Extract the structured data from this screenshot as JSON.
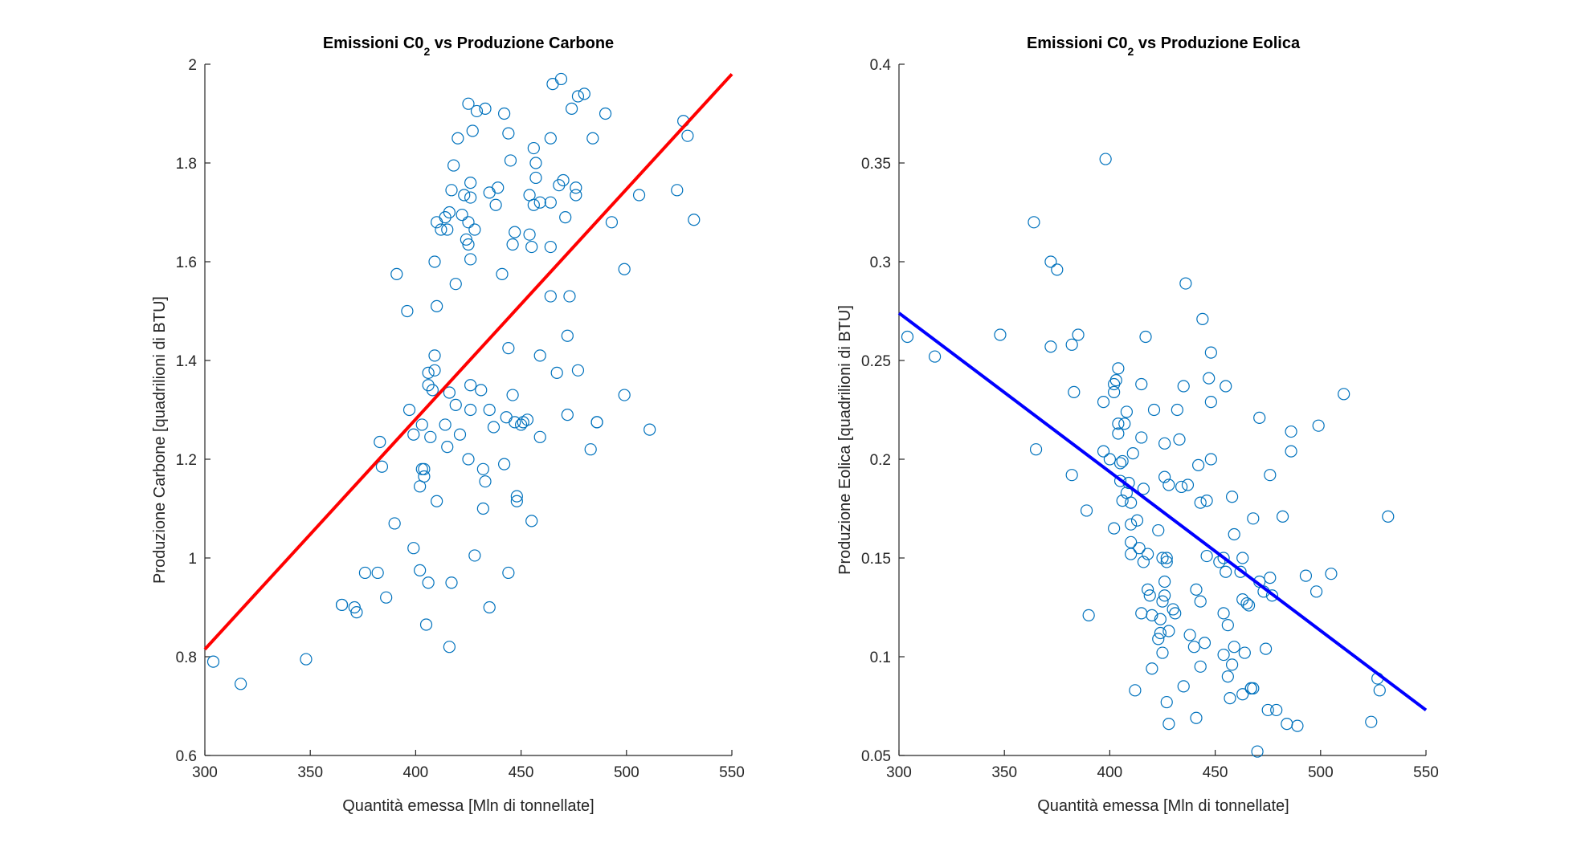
{
  "chart_data": [
    {
      "type": "scatter",
      "title": "Emissioni C0",
      "title_subscript": "2",
      "title_tail": " vs Produzione Carbone",
      "xlabel": "Quantità emessa [Mln di tonnellate]",
      "ylabel": "Produzione Carbone [quadrilioni di BTU]",
      "xlim": [
        300,
        550
      ],
      "ylim": [
        0.6,
        2.0
      ],
      "xticks": [
        "300",
        "350",
        "400",
        "450",
        "500",
        "550"
      ],
      "yticks": [
        "0.6",
        "0.8",
        "1",
        "1.2",
        "1.4",
        "1.6",
        "1.8",
        "2"
      ],
      "grid": false,
      "marker_color": "#0072bd",
      "fit_line": {
        "color": "#ff0000",
        "x": [
          300,
          550
        ],
        "y": [
          0.815,
          1.98
        ]
      },
      "points": [
        [
          304,
          0.79
        ],
        [
          317,
          0.745
        ],
        [
          348,
          0.795
        ],
        [
          365,
          0.905
        ],
        [
          365,
          0.905
        ],
        [
          371,
          0.9
        ],
        [
          372,
          0.89
        ],
        [
          376,
          0.97
        ],
        [
          382,
          0.97
        ],
        [
          383,
          1.235
        ],
        [
          384,
          1.185
        ],
        [
          386,
          0.92
        ],
        [
          390,
          1.07
        ],
        [
          391,
          1.575
        ],
        [
          396,
          1.5
        ],
        [
          397,
          1.3
        ],
        [
          399,
          1.02
        ],
        [
          399,
          1.25
        ],
        [
          402,
          1.145
        ],
        [
          402,
          0.975
        ],
        [
          403,
          1.27
        ],
        [
          403,
          1.18
        ],
        [
          404,
          1.18
        ],
        [
          404,
          1.165
        ],
        [
          405,
          0.865
        ],
        [
          406,
          0.95
        ],
        [
          406,
          1.35
        ],
        [
          406,
          1.375
        ],
        [
          407,
          1.245
        ],
        [
          408,
          1.34
        ],
        [
          409,
          1.38
        ],
        [
          409,
          1.6
        ],
        [
          409,
          1.41
        ],
        [
          410,
          1.51
        ],
        [
          410,
          1.115
        ],
        [
          410,
          1.68
        ],
        [
          412,
          1.665
        ],
        [
          414,
          1.69
        ],
        [
          414,
          1.27
        ],
        [
          415,
          1.665
        ],
        [
          415,
          1.225
        ],
        [
          416,
          1.7
        ],
        [
          416,
          0.82
        ],
        [
          416,
          1.335
        ],
        [
          417,
          0.95
        ],
        [
          417,
          1.745
        ],
        [
          418,
          1.795
        ],
        [
          419,
          1.31
        ],
        [
          419,
          1.555
        ],
        [
          420,
          1.85
        ],
        [
          421,
          1.25
        ],
        [
          422,
          1.695
        ],
        [
          423,
          1.735
        ],
        [
          424,
          1.645
        ],
        [
          425,
          1.2
        ],
        [
          425,
          1.92
        ],
        [
          425,
          1.635
        ],
        [
          425,
          1.68
        ],
        [
          426,
          1.76
        ],
        [
          426,
          1.73
        ],
        [
          426,
          1.605
        ],
        [
          426,
          1.35
        ],
        [
          426,
          1.3
        ],
        [
          427,
          1.865
        ],
        [
          428,
          1.005
        ],
        [
          428,
          1.665
        ],
        [
          429,
          1.905
        ],
        [
          431,
          1.34
        ],
        [
          432,
          1.1
        ],
        [
          432,
          1.18
        ],
        [
          433,
          1.91
        ],
        [
          433,
          1.155
        ],
        [
          435,
          1.74
        ],
        [
          435,
          1.3
        ],
        [
          435,
          0.9
        ],
        [
          437,
          1.265
        ],
        [
          438,
          1.715
        ],
        [
          439,
          1.75
        ],
        [
          441,
          1.575
        ],
        [
          442,
          1.9
        ],
        [
          442,
          1.19
        ],
        [
          443,
          1.285
        ],
        [
          444,
          1.425
        ],
        [
          444,
          0.97
        ],
        [
          444,
          1.86
        ],
        [
          445,
          1.805
        ],
        [
          446,
          1.635
        ],
        [
          446,
          1.33
        ],
        [
          447,
          1.66
        ],
        [
          447,
          1.275
        ],
        [
          448,
          1.125
        ],
        [
          448,
          1.115
        ],
        [
          450,
          1.27
        ],
        [
          451,
          1.275
        ],
        [
          453,
          1.28
        ],
        [
          454,
          1.735
        ],
        [
          454,
          1.655
        ],
        [
          455,
          1.075
        ],
        [
          455,
          1.63
        ],
        [
          456,
          1.83
        ],
        [
          456,
          1.715
        ],
        [
          457,
          1.77
        ],
        [
          457,
          1.8
        ],
        [
          459,
          1.72
        ],
        [
          459,
          1.41
        ],
        [
          459,
          1.245
        ],
        [
          464,
          1.85
        ],
        [
          464,
          1.72
        ],
        [
          464,
          1.53
        ],
        [
          464,
          1.63
        ],
        [
          465,
          1.96
        ],
        [
          467,
          1.375
        ],
        [
          468,
          1.755
        ],
        [
          469,
          1.97
        ],
        [
          470,
          1.765
        ],
        [
          471,
          1.69
        ],
        [
          472,
          1.45
        ],
        [
          472,
          1.29
        ],
        [
          473,
          1.53
        ],
        [
          474,
          1.91
        ],
        [
          476,
          1.735
        ],
        [
          476,
          1.75
        ],
        [
          477,
          1.38
        ],
        [
          477,
          1.935
        ],
        [
          480,
          1.94
        ],
        [
          483,
          1.22
        ],
        [
          484,
          1.85
        ],
        [
          486,
          1.275
        ],
        [
          486,
          1.275
        ],
        [
          490,
          1.9
        ],
        [
          493,
          1.68
        ],
        [
          499,
          1.585
        ],
        [
          499,
          1.33
        ],
        [
          506,
          1.735
        ],
        [
          511,
          1.26
        ],
        [
          524,
          1.745
        ],
        [
          527,
          1.885
        ],
        [
          529,
          1.855
        ],
        [
          532,
          1.685
        ]
      ]
    },
    {
      "type": "scatter",
      "title": "Emissioni C0",
      "title_subscript": "2",
      "title_tail": " vs Produzione Eolica",
      "xlabel": "Quantità emessa [Mln di tonnellate]",
      "ylabel": "Produzione Eolica [quadrilioni di BTU]",
      "xlim": [
        300,
        550
      ],
      "ylim": [
        0.05,
        0.4
      ],
      "xticks": [
        "300",
        "350",
        "400",
        "450",
        "500",
        "550"
      ],
      "yticks": [
        "0.05",
        "0.1",
        "0.15",
        "0.2",
        "0.25",
        "0.3",
        "0.35",
        "0.4"
      ],
      "grid": false,
      "marker_color": "#0072bd",
      "fit_line": {
        "color": "#0000ff",
        "x": [
          300,
          550
        ],
        "y": [
          0.274,
          0.073
        ]
      },
      "points": [
        [
          304,
          0.262
        ],
        [
          317,
          0.252
        ],
        [
          348,
          0.263
        ],
        [
          364,
          0.32
        ],
        [
          365,
          0.205
        ],
        [
          372,
          0.3
        ],
        [
          375,
          0.296
        ],
        [
          372,
          0.257
        ],
        [
          382,
          0.258
        ],
        [
          382,
          0.192
        ],
        [
          383,
          0.234
        ],
        [
          385,
          0.263
        ],
        [
          389,
          0.174
        ],
        [
          390,
          0.121
        ],
        [
          397,
          0.229
        ],
        [
          397,
          0.204
        ],
        [
          398,
          0.352
        ],
        [
          400,
          0.2
        ],
        [
          402,
          0.238
        ],
        [
          402,
          0.234
        ],
        [
          402,
          0.165
        ],
        [
          403,
          0.24
        ],
        [
          404,
          0.246
        ],
        [
          404,
          0.213
        ],
        [
          404,
          0.218
        ],
        [
          405,
          0.198
        ],
        [
          405,
          0.189
        ],
        [
          406,
          0.179
        ],
        [
          406,
          0.199
        ],
        [
          407,
          0.218
        ],
        [
          408,
          0.183
        ],
        [
          408,
          0.224
        ],
        [
          409,
          0.188
        ],
        [
          410,
          0.178
        ],
        [
          410,
          0.167
        ],
        [
          410,
          0.158
        ],
        [
          410,
          0.152
        ],
        [
          411,
          0.203
        ],
        [
          412,
          0.083
        ],
        [
          413,
          0.169
        ],
        [
          414,
          0.155
        ],
        [
          415,
          0.211
        ],
        [
          415,
          0.122
        ],
        [
          415,
          0.238
        ],
        [
          416,
          0.185
        ],
        [
          416,
          0.148
        ],
        [
          417,
          0.262
        ],
        [
          418,
          0.152
        ],
        [
          418,
          0.134
        ],
        [
          419,
          0.131
        ],
        [
          420,
          0.121
        ],
        [
          420,
          0.094
        ],
        [
          421,
          0.225
        ],
        [
          423,
          0.164
        ],
        [
          423,
          0.109
        ],
        [
          424,
          0.112
        ],
        [
          424,
          0.119
        ],
        [
          425,
          0.15
        ],
        [
          425,
          0.102
        ],
        [
          425,
          0.128
        ],
        [
          426,
          0.208
        ],
        [
          426,
          0.131
        ],
        [
          426,
          0.138
        ],
        [
          426,
          0.191
        ],
        [
          427,
          0.148
        ],
        [
          427,
          0.15
        ],
        [
          427,
          0.077
        ],
        [
          428,
          0.187
        ],
        [
          428,
          0.113
        ],
        [
          428,
          0.066
        ],
        [
          430,
          0.124
        ],
        [
          431,
          0.122
        ],
        [
          432,
          0.225
        ],
        [
          433,
          0.21
        ],
        [
          434,
          0.186
        ],
        [
          435,
          0.085
        ],
        [
          435,
          0.237
        ],
        [
          436,
          0.289
        ],
        [
          437,
          0.187
        ],
        [
          438,
          0.111
        ],
        [
          440,
          0.105
        ],
        [
          441,
          0.134
        ],
        [
          441,
          0.069
        ],
        [
          442,
          0.197
        ],
        [
          443,
          0.178
        ],
        [
          443,
          0.128
        ],
        [
          443,
          0.095
        ],
        [
          444,
          0.271
        ],
        [
          445,
          0.107
        ],
        [
          446,
          0.151
        ],
        [
          446,
          0.179
        ],
        [
          447,
          0.241
        ],
        [
          448,
          0.229
        ],
        [
          448,
          0.2
        ],
        [
          448,
          0.254
        ],
        [
          452,
          0.148
        ],
        [
          454,
          0.101
        ],
        [
          454,
          0.15
        ],
        [
          454,
          0.122
        ],
        [
          455,
          0.237
        ],
        [
          455,
          0.143
        ],
        [
          456,
          0.09
        ],
        [
          456,
          0.116
        ],
        [
          457,
          0.079
        ],
        [
          458,
          0.096
        ],
        [
          458,
          0.181
        ],
        [
          459,
          0.105
        ],
        [
          459,
          0.162
        ],
        [
          462,
          0.143
        ],
        [
          463,
          0.081
        ],
        [
          463,
          0.129
        ],
        [
          463,
          0.15
        ],
        [
          464,
          0.102
        ],
        [
          465,
          0.127
        ],
        [
          466,
          0.126
        ],
        [
          467,
          0.084
        ],
        [
          467,
          0.084
        ],
        [
          468,
          0.084
        ],
        [
          468,
          0.17
        ],
        [
          470,
          0.052
        ],
        [
          471,
          0.138
        ],
        [
          471,
          0.221
        ],
        [
          473,
          0.133
        ],
        [
          474,
          0.104
        ],
        [
          475,
          0.073
        ],
        [
          476,
          0.14
        ],
        [
          476,
          0.192
        ],
        [
          477,
          0.131
        ],
        [
          479,
          0.073
        ],
        [
          482,
          0.171
        ],
        [
          484,
          0.066
        ],
        [
          486,
          0.204
        ],
        [
          486,
          0.214
        ],
        [
          489,
          0.065
        ],
        [
          493,
          0.141
        ],
        [
          498,
          0.133
        ],
        [
          499,
          0.217
        ],
        [
          505,
          0.142
        ],
        [
          511,
          0.233
        ],
        [
          524,
          0.067
        ],
        [
          527,
          0.089
        ],
        [
          528,
          0.083
        ],
        [
          532,
          0.171
        ]
      ]
    }
  ]
}
